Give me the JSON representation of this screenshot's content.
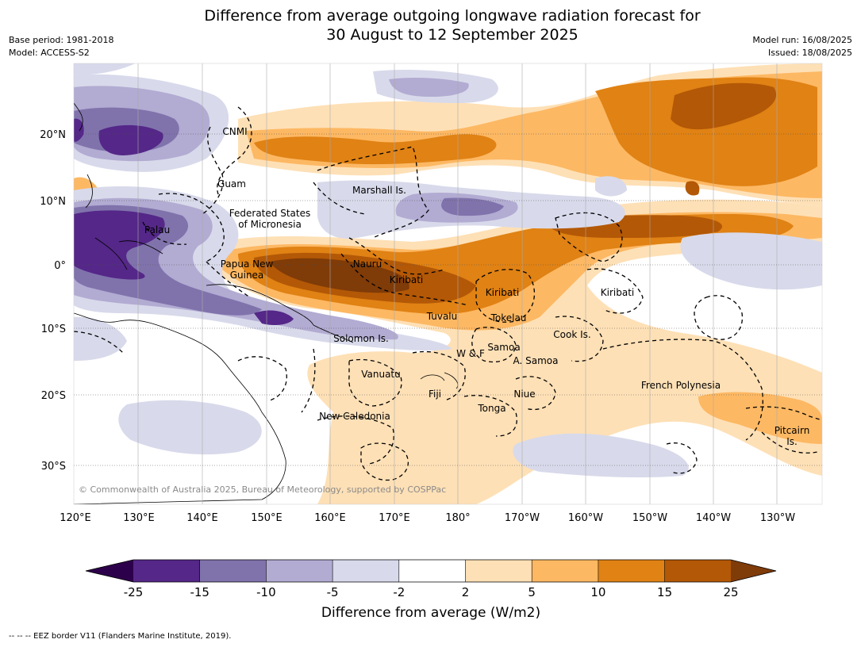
{
  "title_line1": "Difference from average outgoing longwave radiation forecast for",
  "title_line2": "30 August to 12 September 2025",
  "base_period": "Base period: 1981-2018",
  "model": "Model: ACCESS-S2",
  "model_run": "Model run: 16/08/2025",
  "issued": "Issued: 18/08/2025",
  "copyright": "© Commonwealth of Australia 2025, Bureau of Meteorology, supported by COSPPac",
  "footer": "-- -- -- EEZ border V11 (Flanders Marine Institute, 2019).",
  "map": {
    "lon_labels": [
      "120°E",
      "130°E",
      "140°E",
      "150°E",
      "160°E",
      "170°E",
      "180°",
      "170°W",
      "160°W",
      "150°W",
      "140°W",
      "130°W"
    ],
    "lat_labels": [
      "20°N",
      "10°N",
      "0°",
      "10°S",
      "20°S",
      "30°S"
    ],
    "places": [
      {
        "name": "CNMI"
      },
      {
        "name": "Guam"
      },
      {
        "name": "Marshall Is."
      },
      {
        "name": "Federated States"
      },
      {
        "name": "of Micronesia"
      },
      {
        "name": "Palau"
      },
      {
        "name": "Papua New"
      },
      {
        "name": "Guinea"
      },
      {
        "name": "Nauru"
      },
      {
        "name": "Kiribati"
      },
      {
        "name": "Kiribati"
      },
      {
        "name": "Kiribati"
      },
      {
        "name": "Tuvalu"
      },
      {
        "name": "Tokelau"
      },
      {
        "name": "Cook Is."
      },
      {
        "name": "Solomon Is."
      },
      {
        "name": "Samoa"
      },
      {
        "name": "W & F"
      },
      {
        "name": "A. Samoa"
      },
      {
        "name": "Vanuatu"
      },
      {
        "name": "Fiji"
      },
      {
        "name": "Niue"
      },
      {
        "name": "Tonga"
      },
      {
        "name": "French Polynesia"
      },
      {
        "name": "New Caledonia"
      },
      {
        "name": "Pitcairn"
      },
      {
        "name": "Is."
      }
    ]
  },
  "legend": {
    "title": "Difference from average (W/m2)",
    "ticks": [
      "-25",
      "-15",
      "-10",
      "-5",
      "-2",
      "2",
      "5",
      "10",
      "15",
      "25"
    ],
    "colors": [
      "#2d004b",
      "#542788",
      "#8073ac",
      "#b2abd2",
      "#d8daeb",
      "#ffffff",
      "#fee0b6",
      "#fdb863",
      "#e08214",
      "#b35806",
      "#7f3b08"
    ]
  }
}
